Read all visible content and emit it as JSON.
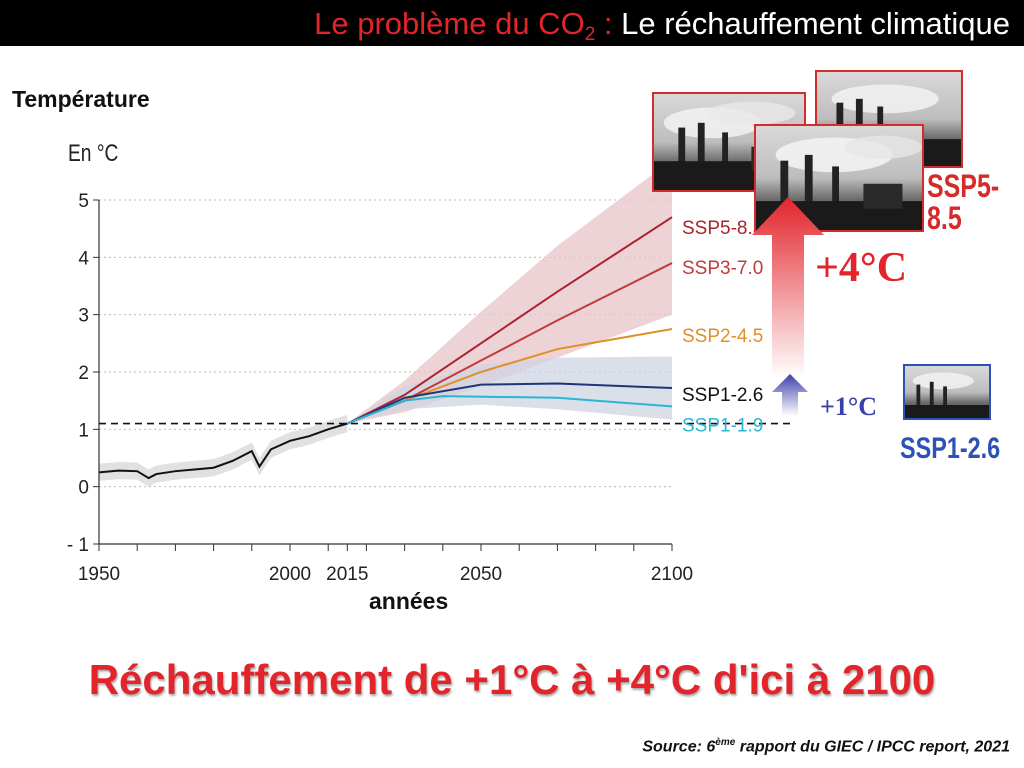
{
  "header": {
    "title_part1": "Le problème du CO",
    "title_sub": "2",
    "title_sep": " : ",
    "title_part2": "Le réchauffement climatique"
  },
  "colors": {
    "accent_red": "#e2242b",
    "ssp585": "#a8242f",
    "ssp370": "#c23a3a",
    "ssp245": "#e0902a",
    "ssp126": "#1e3678",
    "ssp119": "#2bb5d0",
    "historical": "#111111",
    "blue_label": "#2d52b5"
  },
  "annotations": {
    "ssp585_label": "SSP5-8.5",
    "plus4": "+4°C",
    "plus1": "+1°C",
    "ssp126_label": "SSP1-2.6"
  },
  "headline": "Réchauffement de +1°C à +4°C d'ici à 2100",
  "source": {
    "prefix": "Source: 6",
    "sup": "ème",
    "suffix": " rapport du GIEC / IPCC report, 2021"
  },
  "chart_data": {
    "type": "line",
    "title": "",
    "ylabel": "Température",
    "yunit": "En °C",
    "xlabel": "années",
    "xlim": [
      1950,
      2100
    ],
    "ylim": [
      -1,
      5
    ],
    "x_ticks": [
      1950,
      2000,
      2015,
      2050,
      2100
    ],
    "y_ticks": [
      -1,
      0,
      1,
      2,
      3,
      4,
      5
    ],
    "y_tick_labels": [
      "- 1",
      "0",
      "1",
      "2",
      "3",
      "4",
      "5"
    ],
    "grid": "horizontal dotted",
    "reference_line": {
      "y": 1.1,
      "style": "dashed"
    },
    "historical": {
      "x": [
        1950,
        1955,
        1960,
        1963,
        1965,
        1970,
        1975,
        1980,
        1985,
        1990,
        1992,
        1995,
        2000,
        2005,
        2010,
        2015
      ],
      "y": [
        0.25,
        0.28,
        0.27,
        0.15,
        0.22,
        0.27,
        0.3,
        0.33,
        0.45,
        0.62,
        0.35,
        0.65,
        0.8,
        0.88,
        1.0,
        1.1
      ],
      "band": 0.15
    },
    "series": [
      {
        "name": "SSP5-8.5",
        "x": [
          2015,
          2030,
          2050,
          2070,
          2100
        ],
        "y": [
          1.1,
          1.6,
          2.5,
          3.4,
          4.7
        ],
        "band": [
          0,
          0.25,
          0.55,
          0.8,
          1.0
        ]
      },
      {
        "name": "SSP3-7.0",
        "x": [
          2015,
          2030,
          2050,
          2070,
          2100
        ],
        "y": [
          1.1,
          1.5,
          2.2,
          2.9,
          3.9
        ],
        "band": [
          0,
          0.2,
          0.45,
          0.65,
          0.9
        ]
      },
      {
        "name": "SSP2-4.5",
        "x": [
          2015,
          2030,
          2050,
          2070,
          2100
        ],
        "y": [
          1.1,
          1.5,
          2.0,
          2.4,
          2.75
        ],
        "band": [
          0,
          0.2,
          0.35,
          0.45,
          0.55
        ]
      },
      {
        "name": "SSP1-2.6",
        "x": [
          2015,
          2030,
          2050,
          2070,
          2100
        ],
        "y": [
          1.1,
          1.55,
          1.78,
          1.8,
          1.72
        ],
        "band": [
          0,
          0.2,
          0.35,
          0.45,
          0.55
        ]
      },
      {
        "name": "SSP1-1.9",
        "x": [
          2015,
          2030,
          2040,
          2070,
          2100
        ],
        "y": [
          1.1,
          1.5,
          1.58,
          1.55,
          1.4
        ],
        "band": [
          0,
          0.15,
          0.25,
          0.3,
          0.35
        ]
      }
    ]
  }
}
